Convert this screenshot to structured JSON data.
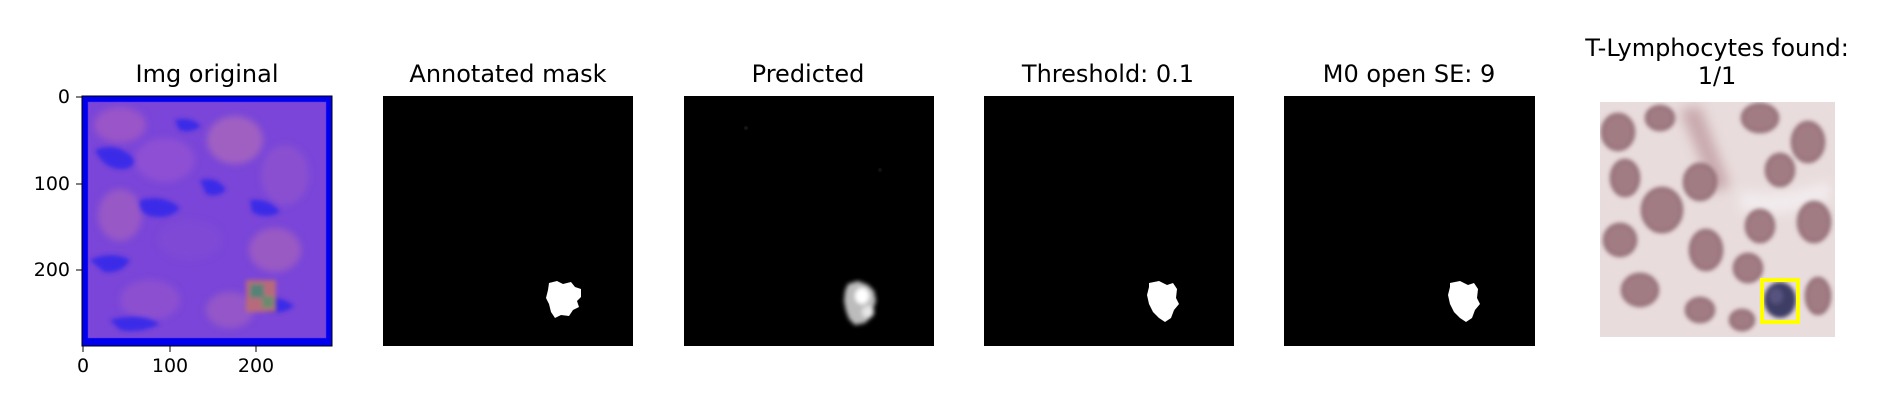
{
  "panels": [
    {
      "title": "Img original"
    },
    {
      "title": "Annotated mask"
    },
    {
      "title": "Predicted"
    },
    {
      "title": "Threshold: 0.1"
    },
    {
      "title": "M0 open SE: 9"
    },
    {
      "title_line1": "T-Lymphocytes found:",
      "title_line2": "1/1"
    }
  ],
  "axes": {
    "y_ticks": [
      "0",
      "100",
      "200"
    ],
    "x_ticks": [
      "0",
      "100",
      "200"
    ]
  },
  "colors": {
    "background": "#ffffff",
    "mask_background": "#000000",
    "detection_box": "#ffff00",
    "original_border": "#0000ff"
  }
}
